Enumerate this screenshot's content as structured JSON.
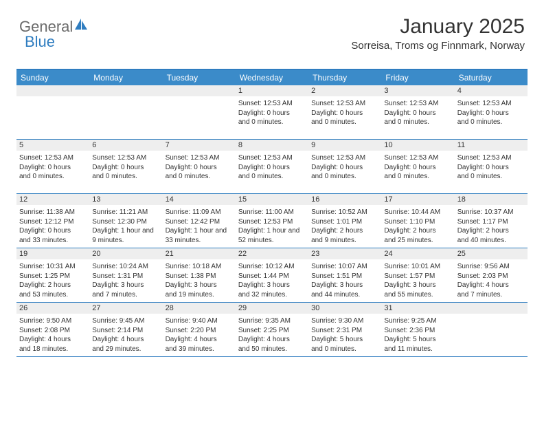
{
  "logo": {
    "text1": "General",
    "text2": "Blue"
  },
  "title": "January 2025",
  "location": "Sorreisa, Troms og Finnmark, Norway",
  "colors": {
    "header_bg": "#3b8bc9",
    "border": "#2f7dc0",
    "daynum_bg": "#eeeeee",
    "text": "#333333"
  },
  "day_headers": [
    "Sunday",
    "Monday",
    "Tuesday",
    "Wednesday",
    "Thursday",
    "Friday",
    "Saturday"
  ],
  "weeks": [
    [
      {
        "num": "",
        "lines": []
      },
      {
        "num": "",
        "lines": []
      },
      {
        "num": "",
        "lines": []
      },
      {
        "num": "1",
        "lines": [
          "Sunset: 12:53 AM",
          "Daylight: 0 hours",
          "and 0 minutes."
        ]
      },
      {
        "num": "2",
        "lines": [
          "Sunset: 12:53 AM",
          "Daylight: 0 hours",
          "and 0 minutes."
        ]
      },
      {
        "num": "3",
        "lines": [
          "Sunset: 12:53 AM",
          "Daylight: 0 hours",
          "and 0 minutes."
        ]
      },
      {
        "num": "4",
        "lines": [
          "Sunset: 12:53 AM",
          "Daylight: 0 hours",
          "and 0 minutes."
        ]
      }
    ],
    [
      {
        "num": "5",
        "lines": [
          "Sunset: 12:53 AM",
          "Daylight: 0 hours",
          "and 0 minutes."
        ]
      },
      {
        "num": "6",
        "lines": [
          "Sunset: 12:53 AM",
          "Daylight: 0 hours",
          "and 0 minutes."
        ]
      },
      {
        "num": "7",
        "lines": [
          "Sunset: 12:53 AM",
          "Daylight: 0 hours",
          "and 0 minutes."
        ]
      },
      {
        "num": "8",
        "lines": [
          "Sunset: 12:53 AM",
          "Daylight: 0 hours",
          "and 0 minutes."
        ]
      },
      {
        "num": "9",
        "lines": [
          "Sunset: 12:53 AM",
          "Daylight: 0 hours",
          "and 0 minutes."
        ]
      },
      {
        "num": "10",
        "lines": [
          "Sunset: 12:53 AM",
          "Daylight: 0 hours",
          "and 0 minutes."
        ]
      },
      {
        "num": "11",
        "lines": [
          "Sunset: 12:53 AM",
          "Daylight: 0 hours",
          "and 0 minutes."
        ]
      }
    ],
    [
      {
        "num": "12",
        "lines": [
          "Sunrise: 11:38 AM",
          "Sunset: 12:12 PM",
          "Daylight: 0 hours",
          "and 33 minutes."
        ]
      },
      {
        "num": "13",
        "lines": [
          "Sunrise: 11:21 AM",
          "Sunset: 12:30 PM",
          "Daylight: 1 hour and",
          "9 minutes."
        ]
      },
      {
        "num": "14",
        "lines": [
          "Sunrise: 11:09 AM",
          "Sunset: 12:42 PM",
          "Daylight: 1 hour and",
          "33 minutes."
        ]
      },
      {
        "num": "15",
        "lines": [
          "Sunrise: 11:00 AM",
          "Sunset: 12:53 PM",
          "Daylight: 1 hour and",
          "52 minutes."
        ]
      },
      {
        "num": "16",
        "lines": [
          "Sunrise: 10:52 AM",
          "Sunset: 1:01 PM",
          "Daylight: 2 hours",
          "and 9 minutes."
        ]
      },
      {
        "num": "17",
        "lines": [
          "Sunrise: 10:44 AM",
          "Sunset: 1:10 PM",
          "Daylight: 2 hours",
          "and 25 minutes."
        ]
      },
      {
        "num": "18",
        "lines": [
          "Sunrise: 10:37 AM",
          "Sunset: 1:17 PM",
          "Daylight: 2 hours",
          "and 40 minutes."
        ]
      }
    ],
    [
      {
        "num": "19",
        "lines": [
          "Sunrise: 10:31 AM",
          "Sunset: 1:25 PM",
          "Daylight: 2 hours",
          "and 53 minutes."
        ]
      },
      {
        "num": "20",
        "lines": [
          "Sunrise: 10:24 AM",
          "Sunset: 1:31 PM",
          "Daylight: 3 hours",
          "and 7 minutes."
        ]
      },
      {
        "num": "21",
        "lines": [
          "Sunrise: 10:18 AM",
          "Sunset: 1:38 PM",
          "Daylight: 3 hours",
          "and 19 minutes."
        ]
      },
      {
        "num": "22",
        "lines": [
          "Sunrise: 10:12 AM",
          "Sunset: 1:44 PM",
          "Daylight: 3 hours",
          "and 32 minutes."
        ]
      },
      {
        "num": "23",
        "lines": [
          "Sunrise: 10:07 AM",
          "Sunset: 1:51 PM",
          "Daylight: 3 hours",
          "and 44 minutes."
        ]
      },
      {
        "num": "24",
        "lines": [
          "Sunrise: 10:01 AM",
          "Sunset: 1:57 PM",
          "Daylight: 3 hours",
          "and 55 minutes."
        ]
      },
      {
        "num": "25",
        "lines": [
          "Sunrise: 9:56 AM",
          "Sunset: 2:03 PM",
          "Daylight: 4 hours",
          "and 7 minutes."
        ]
      }
    ],
    [
      {
        "num": "26",
        "lines": [
          "Sunrise: 9:50 AM",
          "Sunset: 2:08 PM",
          "Daylight: 4 hours",
          "and 18 minutes."
        ]
      },
      {
        "num": "27",
        "lines": [
          "Sunrise: 9:45 AM",
          "Sunset: 2:14 PM",
          "Daylight: 4 hours",
          "and 29 minutes."
        ]
      },
      {
        "num": "28",
        "lines": [
          "Sunrise: 9:40 AM",
          "Sunset: 2:20 PM",
          "Daylight: 4 hours",
          "and 39 minutes."
        ]
      },
      {
        "num": "29",
        "lines": [
          "Sunrise: 9:35 AM",
          "Sunset: 2:25 PM",
          "Daylight: 4 hours",
          "and 50 minutes."
        ]
      },
      {
        "num": "30",
        "lines": [
          "Sunrise: 9:30 AM",
          "Sunset: 2:31 PM",
          "Daylight: 5 hours",
          "and 0 minutes."
        ]
      },
      {
        "num": "31",
        "lines": [
          "Sunrise: 9:25 AM",
          "Sunset: 2:36 PM",
          "Daylight: 5 hours",
          "and 11 minutes."
        ]
      },
      {
        "num": "",
        "lines": []
      }
    ]
  ]
}
